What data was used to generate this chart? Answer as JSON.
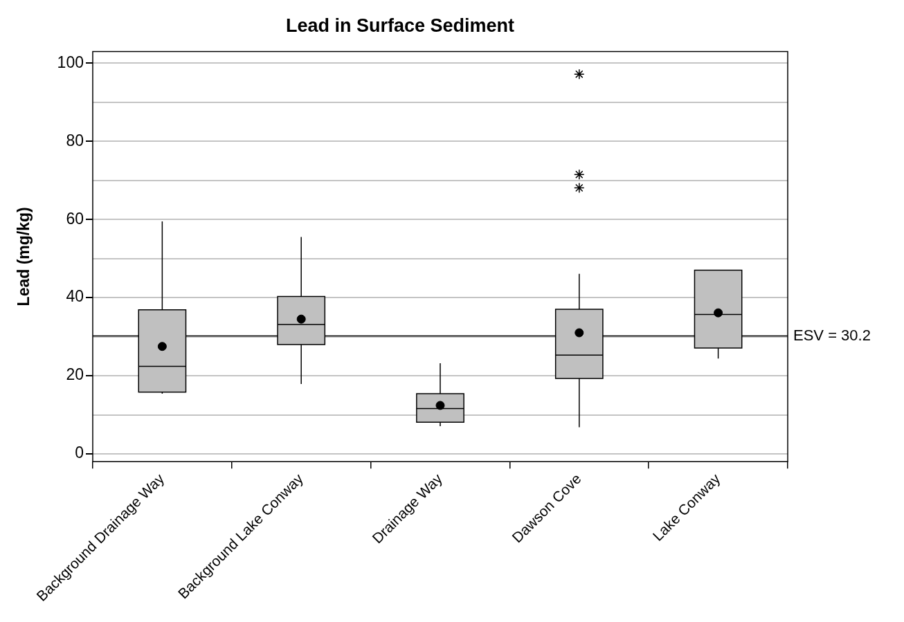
{
  "chart_data": {
    "type": "box",
    "title": "Lead in Surface Sediment",
    "ylabel": "Lead (mg/kg)",
    "categories": [
      "Background Drainage Way",
      "Background Lake Conway",
      "Drainage Way",
      "Dawson Cove",
      "Lake Conway"
    ],
    "color": "#c0c0c0",
    "boxes": [
      {
        "low": 15.4,
        "q1": 15.8,
        "median": 22.4,
        "q3": 36.9,
        "high": 59.5,
        "mean": 27.5
      },
      {
        "low": 17.9,
        "q1": 28.0,
        "median": 33.1,
        "q3": 40.3,
        "high": 55.5,
        "mean": 34.5
      },
      {
        "low": 7.1,
        "q1": 8.1,
        "median": 11.6,
        "q3": 15.4,
        "high": 23.2,
        "mean": 12.4
      },
      {
        "low": 6.8,
        "q1": 19.3,
        "median": 25.3,
        "q3": 37.0,
        "high": 46.1,
        "mean": 31.0,
        "outliers": [
          68.1,
          71.5,
          97.2
        ]
      },
      {
        "low": 24.4,
        "q1": 27.1,
        "median": 35.7,
        "q3": 47.0,
        "high": 47.0,
        "mean": 36.1
      }
    ],
    "ylim": [
      -2,
      103
    ],
    "yticks": [
      0,
      {
        "value": 10,
        "label": null
      },
      20,
      {
        "value": 30,
        "label": null
      },
      40,
      {
        "value": 50,
        "label": null
      },
      60,
      {
        "value": 70,
        "label": null
      },
      80,
      {
        "value": 90,
        "label": null
      },
      100
    ],
    "grid": "y",
    "ref_lines": [
      {
        "axis": "y",
        "value": 30.2,
        "label": "ESV = 30.2",
        "color": "#000000"
      }
    ]
  }
}
